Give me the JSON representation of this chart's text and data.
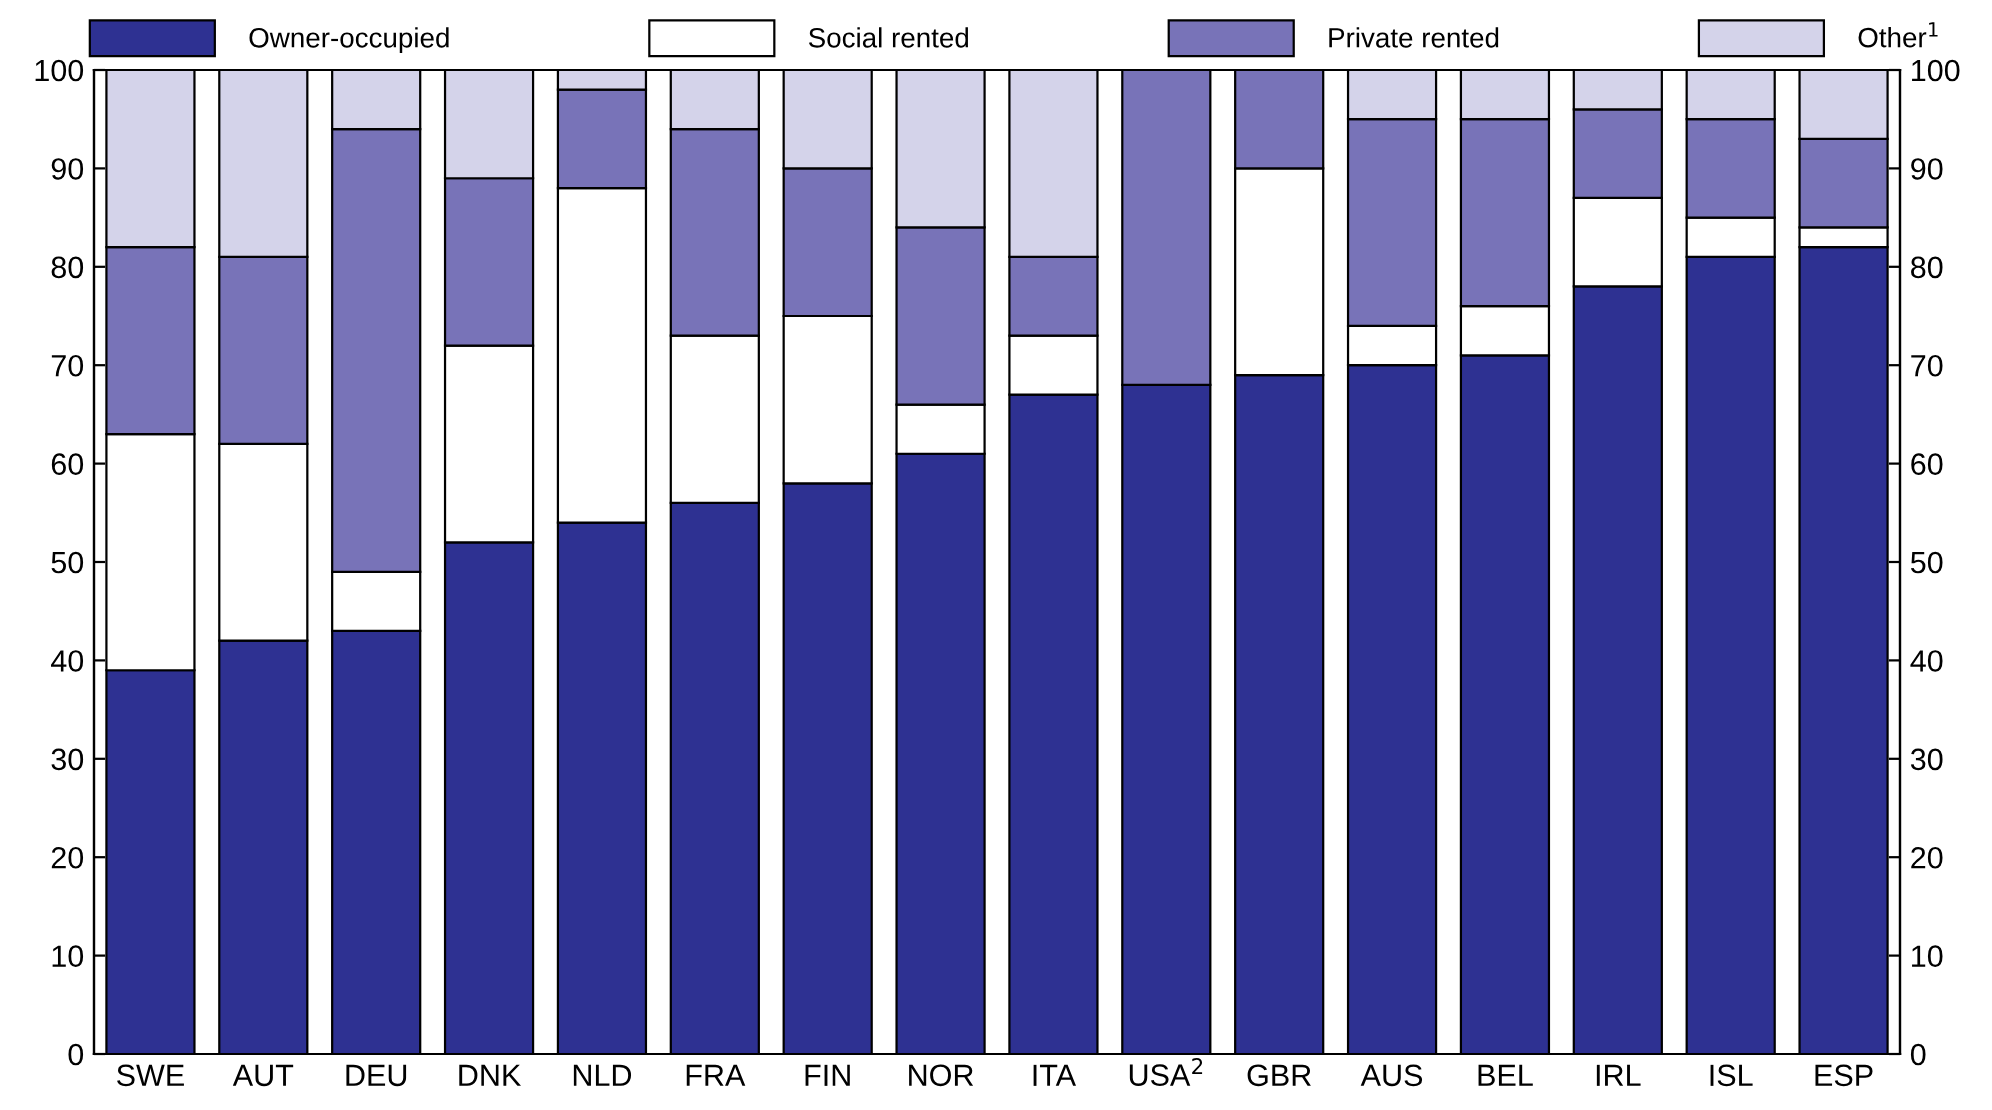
{
  "chart_data": {
    "type": "bar",
    "stacked": true,
    "categories": [
      "SWE",
      "AUT",
      "DEU",
      "DNK",
      "NLD",
      "FRA",
      "FIN",
      "NOR",
      "ITA",
      "USA$^{2}$",
      "GBR",
      "AUS",
      "BEL",
      "IRL",
      "ISL",
      "ESP"
    ],
    "series": [
      {
        "name": "Owner-occupied",
        "color": "#2e3192",
        "values": [
          39,
          42,
          43,
          52,
          54,
          56,
          58,
          61,
          67,
          68,
          69,
          70,
          71,
          78,
          81,
          82
        ]
      },
      {
        "name": "Social rented",
        "color": "#ffffff",
        "values": [
          24,
          20,
          6,
          20,
          34,
          17,
          17,
          5,
          6,
          null,
          21,
          4,
          5,
          9,
          4,
          2
        ]
      },
      {
        "name": "Private rented",
        "color": "#7873b8",
        "values": [
          19,
          19,
          45,
          17,
          10,
          21,
          15,
          18,
          8,
          32,
          10,
          21,
          19,
          9,
          10,
          9
        ]
      },
      {
        "name": "Other$^{1}$",
        "color": "#d4d3ea",
        "values": [
          18,
          19,
          6,
          11,
          2,
          6,
          10,
          16,
          19,
          null,
          null,
          5,
          5,
          4,
          5,
          7
        ]
      }
    ],
    "ylim": [
      0,
      100
    ],
    "yticks": [
      0,
      10,
      20,
      30,
      40,
      50,
      60,
      70,
      80,
      90,
      100
    ],
    "y2lim": [
      0,
      100
    ],
    "y2ticks": [
      0,
      10,
      20,
      30,
      40,
      50,
      60,
      70,
      80,
      90,
      100
    ],
    "grid": false,
    "legend": "top"
  }
}
